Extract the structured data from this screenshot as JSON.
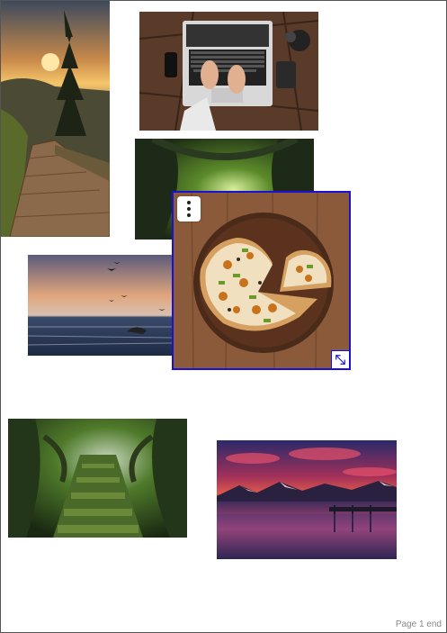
{
  "footer": {
    "page_label": "Page 1 end"
  },
  "photos": [
    {
      "name": "sunset-boardwalk-photo"
    },
    {
      "name": "laptop-desk-photo"
    },
    {
      "name": "forest-tunnel-photo"
    },
    {
      "name": "sea-birds-photo"
    },
    {
      "name": "pizza-photo",
      "selected": true
    },
    {
      "name": "mossy-forest-path-photo"
    },
    {
      "name": "lake-sunset-photo"
    }
  ],
  "selection": {
    "menu_icon": "vertical-dots-icon",
    "resize_icon": "resize-diagonal-icon",
    "border_color": "#1a10d8"
  }
}
